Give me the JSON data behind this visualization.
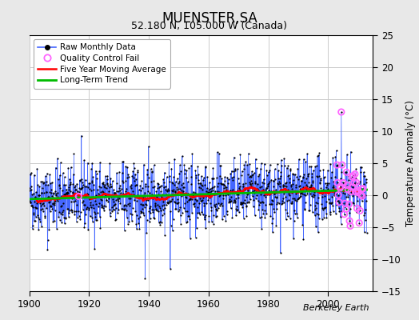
{
  "title": "MUENSTER,SA",
  "subtitle": "52.180 N, 105.000 W (Canada)",
  "ylabel": "Temperature Anomaly (°C)",
  "watermark": "Berkeley Earth",
  "xlim": [
    1900,
    2015
  ],
  "ylim": [
    -15,
    25
  ],
  "yticks": [
    -15,
    -10,
    -5,
    0,
    5,
    10,
    15,
    20,
    25
  ],
  "xticks": [
    1900,
    1920,
    1940,
    1960,
    1980,
    2000
  ],
  "fig_bg_color": "#e8e8e8",
  "plot_bg_color": "#ffffff",
  "grid_color": "#cccccc",
  "raw_line_color": "#4466ff",
  "raw_dot_color": "#000000",
  "qc_fail_color": "#ff66ff",
  "moving_avg_color": "#ff0000",
  "trend_color": "#00bb00",
  "seed": 42,
  "n_years": 113,
  "start_year": 1900
}
